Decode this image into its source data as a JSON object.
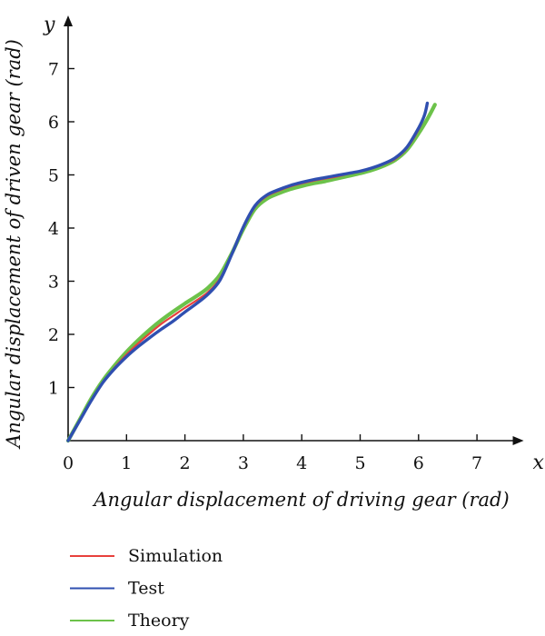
{
  "chart_data": {
    "type": "line",
    "xlabel": "Angular displacement of driving gear (rad)",
    "ylabel": "Angular displacement of driven gear (rad)",
    "x_axis_symbol": "x",
    "y_axis_symbol": "y",
    "xlim": [
      0,
      7.8
    ],
    "ylim": [
      0,
      8
    ],
    "x_ticks": [
      0,
      1,
      2,
      3,
      4,
      5,
      6,
      7
    ],
    "y_ticks": [
      1,
      2,
      3,
      4,
      5,
      6,
      7
    ],
    "grid": false,
    "legend_position": "bottom-left",
    "series": [
      {
        "name": "Simulation",
        "color": "#e8413c",
        "x": [
          0,
          0.2,
          0.4,
          0.6,
          0.8,
          1.0,
          1.2,
          1.4,
          1.6,
          1.8,
          2.0,
          2.2,
          2.4,
          2.6,
          2.8,
          3.0,
          3.2,
          3.4,
          3.6,
          3.8,
          4.0,
          4.2,
          4.4,
          4.6,
          4.8,
          5.0,
          5.2,
          5.4,
          5.6,
          5.8,
          6.0,
          6.1,
          6.15
        ],
        "y": [
          0,
          0.38,
          0.76,
          1.1,
          1.38,
          1.62,
          1.83,
          2.02,
          2.2,
          2.35,
          2.5,
          2.64,
          2.8,
          3.05,
          3.5,
          4.0,
          4.4,
          4.6,
          4.7,
          4.78,
          4.84,
          4.89,
          4.93,
          4.97,
          5.02,
          5.06,
          5.12,
          5.2,
          5.3,
          5.5,
          5.85,
          6.1,
          6.3
        ]
      },
      {
        "name": "Test",
        "color": "#2f4fb0",
        "x": [
          0,
          0.2,
          0.4,
          0.6,
          0.8,
          1.0,
          1.2,
          1.4,
          1.6,
          1.8,
          2.0,
          2.2,
          2.4,
          2.6,
          2.8,
          3.0,
          3.2,
          3.4,
          3.6,
          3.8,
          4.0,
          4.2,
          4.4,
          4.6,
          4.8,
          5.0,
          5.2,
          5.4,
          5.6,
          5.8,
          6.0,
          6.1,
          6.15
        ],
        "y": [
          0,
          0.38,
          0.76,
          1.1,
          1.36,
          1.58,
          1.77,
          1.94,
          2.1,
          2.25,
          2.42,
          2.58,
          2.76,
          3.02,
          3.5,
          4.02,
          4.42,
          4.62,
          4.72,
          4.8,
          4.86,
          4.91,
          4.95,
          4.99,
          5.03,
          5.07,
          5.13,
          5.21,
          5.32,
          5.52,
          5.88,
          6.12,
          6.35
        ]
      },
      {
        "name": "Theory",
        "color": "#6cc24a",
        "x": [
          0,
          0.2,
          0.4,
          0.6,
          0.8,
          1.0,
          1.2,
          1.4,
          1.6,
          1.8,
          2.0,
          2.2,
          2.4,
          2.6,
          2.8,
          3.0,
          3.2,
          3.4,
          3.6,
          3.8,
          4.0,
          4.2,
          4.4,
          4.6,
          4.8,
          5.0,
          5.2,
          5.4,
          5.6,
          5.8,
          6.0,
          6.15,
          6.28
        ],
        "y": [
          0,
          0.4,
          0.8,
          1.14,
          1.42,
          1.67,
          1.89,
          2.09,
          2.27,
          2.43,
          2.58,
          2.72,
          2.88,
          3.12,
          3.52,
          3.98,
          4.36,
          4.55,
          4.65,
          4.73,
          4.79,
          4.84,
          4.88,
          4.93,
          4.98,
          5.03,
          5.09,
          5.17,
          5.28,
          5.47,
          5.78,
          6.05,
          6.32
        ]
      }
    ]
  }
}
